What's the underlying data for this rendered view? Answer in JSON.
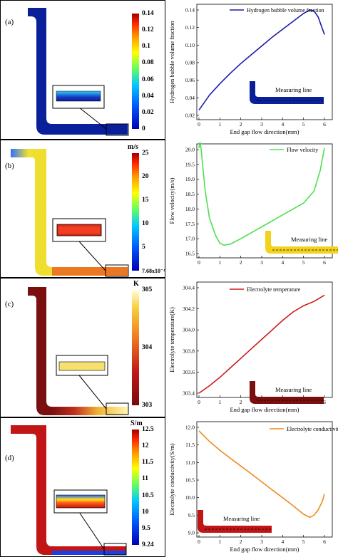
{
  "panels": [
    {
      "label": "(a)",
      "unit": "",
      "colorbar_ticks": [
        "0.14",
        "0.12",
        "0.1",
        "0.08",
        "0.06",
        "0.04",
        "0.02",
        "0"
      ],
      "sim_color": "#0a1f9a",
      "chart": {
        "type": "line",
        "legend": "Hydrogen bubble volume fraction",
        "color": "#1a1aa8",
        "xlabel": "End gap flow direction(mm)",
        "ylabel": "Hydrogen bubble volume fraction",
        "xlim": [
          0,
          6
        ],
        "ylim": [
          0.02,
          0.14
        ],
        "yticks": [
          "0.02",
          "0.04",
          "0.06",
          "0.08",
          "0.10",
          "0.12",
          "0.14"
        ],
        "inset_label": "Measuring line",
        "x": [
          0.0,
          0.5,
          1.0,
          1.5,
          2.0,
          2.5,
          3.0,
          3.5,
          4.0,
          4.5,
          5.0,
          5.3,
          5.5,
          5.7,
          5.85,
          6.0
        ],
        "y": [
          0.026,
          0.043,
          0.056,
          0.068,
          0.079,
          0.089,
          0.099,
          0.109,
          0.118,
          0.127,
          0.136,
          0.14,
          0.139,
          0.132,
          0.122,
          0.112
        ]
      }
    },
    {
      "label": "(b)",
      "unit": "m/s",
      "colorbar_ticks": [
        "25",
        "20",
        "15",
        "10",
        "5",
        "7.68x10⁻⁴"
      ],
      "sim_color": "#f3d21e",
      "chart": {
        "type": "line",
        "legend": "Flow velocity",
        "color": "#4ee04e",
        "xlabel": "",
        "ylabel": "Flow velocity(m/s)",
        "xlim": [
          0,
          6
        ],
        "ylim": [
          16.5,
          20.0
        ],
        "yticks": [
          "16.5",
          "17.0",
          "17.5",
          "18.0",
          "18.5",
          "19.0",
          "19.5",
          "20.0"
        ],
        "inset_label": "Measuring line",
        "x": [
          0.0,
          0.05,
          0.1,
          0.2,
          0.3,
          0.5,
          0.8,
          1.0,
          1.2,
          1.5,
          2.0,
          2.5,
          3.0,
          3.5,
          4.0,
          4.5,
          5.0,
          5.5,
          5.8,
          6.0
        ],
        "y": [
          20.05,
          20.25,
          20.05,
          19.3,
          18.6,
          17.7,
          17.1,
          16.85,
          16.78,
          16.82,
          17.0,
          17.2,
          17.4,
          17.6,
          17.8,
          18.0,
          18.2,
          18.6,
          19.3,
          20.05
        ]
      }
    },
    {
      "label": "(c)",
      "unit": "K",
      "colorbar_ticks": [
        "305",
        "304",
        "303"
      ],
      "sim_color": "#7a0f0f",
      "chart": {
        "type": "line",
        "legend": "Electrolyte temperature",
        "color": "#d01818",
        "xlabel": "End gap flow direction(mm)",
        "ylabel": "Electrolyte temperature(K)",
        "xlim": [
          0,
          6
        ],
        "ylim": [
          303.4,
          304.4
        ],
        "yticks": [
          "303.4",
          "303.6",
          "303.8",
          "304.0",
          "304.2",
          "304.4"
        ],
        "inset_label": "Measuring line",
        "x": [
          0.0,
          0.5,
          1.0,
          1.5,
          2.0,
          2.5,
          3.0,
          3.5,
          4.0,
          4.5,
          5.0,
          5.5,
          6.0
        ],
        "y": [
          303.4,
          303.47,
          303.55,
          303.64,
          303.73,
          303.82,
          303.91,
          304.0,
          304.09,
          304.17,
          304.23,
          304.27,
          304.33
        ]
      }
    },
    {
      "label": "(d)",
      "unit": "S/m",
      "colorbar_ticks": [
        "12.5",
        "12",
        "11.5",
        "11",
        "10.5",
        "10",
        "9.5",
        "9.24"
      ],
      "sim_color": "#c21616",
      "chart": {
        "type": "line",
        "legend": "Electrolyte conductivity",
        "color": "#f08a1e",
        "xlabel": "End gap flow direction(mm)",
        "ylabel": "Electrolyte conductivity(S/m)",
        "xlim": [
          0,
          6
        ],
        "ylim": [
          9.0,
          12.0
        ],
        "yticks": [
          "9.0",
          "9.5",
          "10.0",
          "10.5",
          "11.0",
          "11.5",
          "12.0"
        ],
        "inset_label": "Measuring line",
        "x": [
          0.0,
          0.5,
          1.0,
          1.5,
          2.0,
          2.5,
          3.0,
          3.5,
          4.0,
          4.5,
          5.0,
          5.3,
          5.5,
          5.7,
          5.9,
          6.0
        ],
        "y": [
          11.9,
          11.6,
          11.35,
          11.12,
          10.9,
          10.68,
          10.45,
          10.22,
          10.0,
          9.77,
          9.53,
          9.44,
          9.5,
          9.65,
          9.9,
          10.1
        ]
      }
    }
  ],
  "colors": {
    "rainbow": [
      "#0000b4",
      "#0058ff",
      "#00c8ff",
      "#40ff80",
      "#ffff00",
      "#ff9800",
      "#ff2000",
      "#a00000"
    ],
    "heat": [
      "#7a0a0a",
      "#c41a1a",
      "#f08020",
      "#f8d040",
      "#ffffe0"
    ]
  },
  "xticks": [
    "0",
    "1",
    "2",
    "3",
    "4",
    "5",
    "6"
  ]
}
